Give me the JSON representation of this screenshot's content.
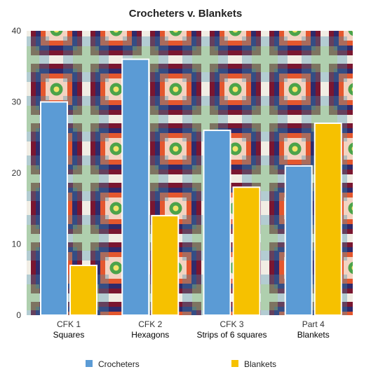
{
  "chart_data": {
    "type": "bar",
    "title": "Crocheters v. Blankets",
    "categories": [
      [
        "CFK 1",
        "Squares"
      ],
      [
        "CFK 2",
        "Hexagons"
      ],
      [
        "CFK 3",
        "Strips of 6 squares"
      ],
      [
        "Part 4",
        "Blankets"
      ]
    ],
    "series": [
      {
        "name": "Crocheters",
        "values": [
          30,
          36,
          26,
          21
        ]
      },
      {
        "name": "Blankets",
        "values": [
          7,
          14,
          18,
          27
        ]
      }
    ],
    "ylim": [
      0,
      40
    ],
    "yticks": [
      "0",
      "10",
      "20",
      "30",
      "40"
    ],
    "grid": false,
    "legend_position": "bottom",
    "background": "crochet granny-square blanket photo",
    "colors": {
      "Crocheters": "#5b9bd5",
      "Blankets": "#f6c100"
    }
  }
}
